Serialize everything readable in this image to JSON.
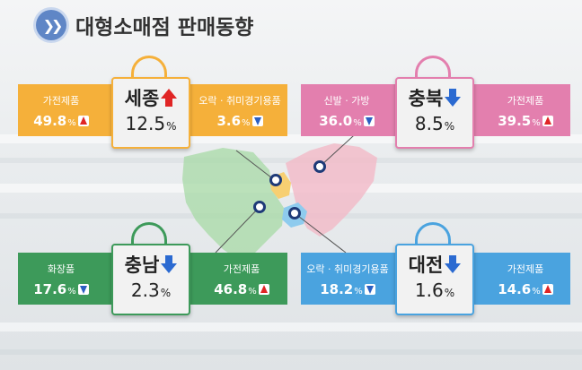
{
  "title": "대형소매점 판매동향",
  "colors": {
    "sejong": "#f5b03a",
    "chungbuk": "#e37fae",
    "chungnam": "#3d9a5a",
    "daejeon": "#4aa3df",
    "up_arrow": "#e02525",
    "down_arrow": "#2b6ad1",
    "title_icon": "#5f86c6"
  },
  "regions": {
    "sejong": {
      "name": "세종",
      "value": "12.5",
      "unit": "%",
      "trend": "up",
      "trend_icon": "red-up-arrow-icon",
      "left": {
        "label": "가전제품",
        "value": "49.8",
        "unit": "%",
        "trend": "up"
      },
      "right": {
        "label": "오락 · 취미경기용품",
        "value": "3.6",
        "unit": "%",
        "trend": "down"
      }
    },
    "chungbuk": {
      "name": "충북",
      "value": "8.5",
      "unit": "%",
      "trend": "down",
      "trend_icon": "blue-down-arrow-icon",
      "left": {
        "label": "신발 · 가방",
        "value": "36.0",
        "unit": "%",
        "trend": "down"
      },
      "right": {
        "label": "가전제품",
        "value": "39.5",
        "unit": "%",
        "trend": "up"
      }
    },
    "chungnam": {
      "name": "충남",
      "value": "2.3",
      "unit": "%",
      "trend": "down",
      "trend_icon": "blue-down-arrow-icon",
      "left": {
        "label": "화장품",
        "value": "17.6",
        "unit": "%",
        "trend": "down"
      },
      "right": {
        "label": "가전제품",
        "value": "46.8",
        "unit": "%",
        "trend": "up"
      }
    },
    "daejeon": {
      "name": "대전",
      "value": "1.6",
      "unit": "%",
      "trend": "down",
      "trend_icon": "blue-down-arrow-icon",
      "left": {
        "label": "오락 · 취미경기용품",
        "value": "18.2",
        "unit": "%",
        "trend": "down"
      },
      "right": {
        "label": "가전제품",
        "value": "14.6",
        "unit": "%",
        "trend": "up"
      }
    }
  }
}
